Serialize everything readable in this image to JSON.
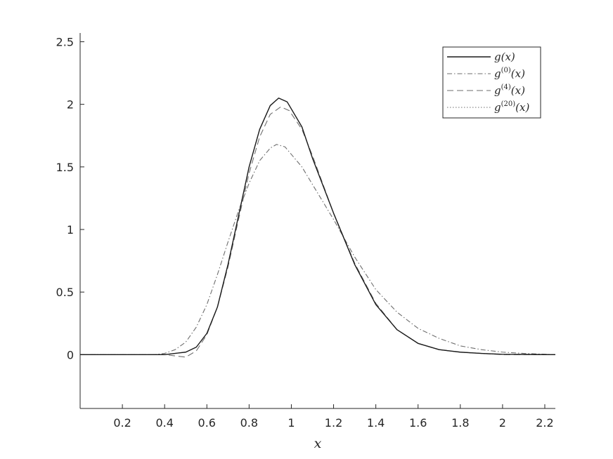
{
  "chart_data": {
    "type": "line",
    "title": "",
    "xlabel": "x",
    "ylabel": "",
    "xlim": [
      0.0,
      2.25
    ],
    "ylim": [
      -0.43,
      2.57
    ],
    "xticks": [
      "0.2",
      "0.4",
      "0.6",
      "0.8",
      "1",
      "1.2",
      "1.4",
      "1.6",
      "1.8",
      "2",
      "2.2"
    ],
    "yticks": [
      "0",
      "0.5",
      "1",
      "1.5",
      "2",
      "2.5"
    ],
    "grid": false,
    "legend_position": "top-right",
    "series": [
      {
        "name": "g(x)",
        "legend_base": "g",
        "legend_sup": "",
        "legend_tail": "(x)",
        "style": "solid",
        "color": "#1a1a1a",
        "points": [
          [
            0.0,
            0.0
          ],
          [
            0.4,
            0.0
          ],
          [
            0.5,
            0.02
          ],
          [
            0.55,
            0.06
          ],
          [
            0.6,
            0.17
          ],
          [
            0.65,
            0.38
          ],
          [
            0.7,
            0.72
          ],
          [
            0.75,
            1.11
          ],
          [
            0.8,
            1.5
          ],
          [
            0.85,
            1.8
          ],
          [
            0.9,
            1.99
          ],
          [
            0.94,
            2.05
          ],
          [
            0.98,
            2.02
          ],
          [
            1.05,
            1.82
          ],
          [
            1.1,
            1.57
          ],
          [
            1.2,
            1.13
          ],
          [
            1.3,
            0.72
          ],
          [
            1.4,
            0.4
          ],
          [
            1.5,
            0.2
          ],
          [
            1.6,
            0.09
          ],
          [
            1.7,
            0.04
          ],
          [
            1.8,
            0.02
          ],
          [
            1.9,
            0.01
          ],
          [
            2.0,
            0.003
          ],
          [
            2.25,
            0.0
          ]
        ]
      },
      {
        "name": "g^(0)(x)",
        "legend_base": "g",
        "legend_sup": "(0)",
        "legend_tail": "(x)",
        "style": "dashdot",
        "color": "#6e6e6e",
        "points": [
          [
            0.0,
            0.0
          ],
          [
            0.35,
            0.0
          ],
          [
            0.4,
            0.01
          ],
          [
            0.45,
            0.04
          ],
          [
            0.5,
            0.1
          ],
          [
            0.55,
            0.22
          ],
          [
            0.6,
            0.4
          ],
          [
            0.65,
            0.64
          ],
          [
            0.7,
            0.9
          ],
          [
            0.75,
            1.15
          ],
          [
            0.8,
            1.37
          ],
          [
            0.85,
            1.55
          ],
          [
            0.9,
            1.65
          ],
          [
            0.93,
            1.68
          ],
          [
            0.97,
            1.66
          ],
          [
            1.05,
            1.5
          ],
          [
            1.1,
            1.36
          ],
          [
            1.2,
            1.08
          ],
          [
            1.3,
            0.78
          ],
          [
            1.4,
            0.52
          ],
          [
            1.5,
            0.34
          ],
          [
            1.6,
            0.21
          ],
          [
            1.7,
            0.13
          ],
          [
            1.8,
            0.07
          ],
          [
            1.9,
            0.04
          ],
          [
            2.0,
            0.02
          ],
          [
            2.1,
            0.01
          ],
          [
            2.25,
            0.0
          ]
        ]
      },
      {
        "name": "g^(4)(x)",
        "legend_base": "g",
        "legend_sup": "(4)",
        "legend_tail": "(x)",
        "style": "dashed",
        "color": "#6e6e6e",
        "points": [
          [
            0.0,
            0.0
          ],
          [
            0.4,
            0.0
          ],
          [
            0.45,
            -0.01
          ],
          [
            0.5,
            -0.02
          ],
          [
            0.55,
            0.03
          ],
          [
            0.6,
            0.16
          ],
          [
            0.65,
            0.38
          ],
          [
            0.7,
            0.7
          ],
          [
            0.75,
            1.08
          ],
          [
            0.8,
            1.45
          ],
          [
            0.85,
            1.74
          ],
          [
            0.9,
            1.92
          ],
          [
            0.95,
            1.98
          ],
          [
            0.99,
            1.95
          ],
          [
            1.05,
            1.8
          ],
          [
            1.1,
            1.59
          ],
          [
            1.2,
            1.13
          ],
          [
            1.3,
            0.73
          ],
          [
            1.4,
            0.41
          ],
          [
            1.5,
            0.2
          ],
          [
            1.6,
            0.09
          ],
          [
            1.7,
            0.04
          ],
          [
            1.8,
            0.02
          ],
          [
            1.9,
            0.01
          ],
          [
            2.0,
            0.0
          ],
          [
            2.25,
            0.0
          ]
        ]
      },
      {
        "name": "g^(20)(x)",
        "legend_base": "g",
        "legend_sup": "(20)",
        "legend_tail": "(x)",
        "style": "dotted",
        "color": "#6e6e6e",
        "points": [
          [
            0.0,
            0.0
          ],
          [
            0.4,
            0.0
          ],
          [
            0.5,
            0.02
          ],
          [
            0.55,
            0.06
          ],
          [
            0.6,
            0.17
          ],
          [
            0.65,
            0.38
          ],
          [
            0.7,
            0.72
          ],
          [
            0.75,
            1.11
          ],
          [
            0.8,
            1.5
          ],
          [
            0.85,
            1.8
          ],
          [
            0.9,
            1.99
          ],
          [
            0.94,
            2.05
          ],
          [
            0.98,
            2.02
          ],
          [
            1.05,
            1.82
          ],
          [
            1.1,
            1.57
          ],
          [
            1.2,
            1.13
          ],
          [
            1.3,
            0.72
          ],
          [
            1.4,
            0.4
          ],
          [
            1.5,
            0.2
          ],
          [
            1.6,
            0.09
          ],
          [
            1.7,
            0.04
          ],
          [
            1.8,
            0.02
          ],
          [
            1.9,
            0.01
          ],
          [
            2.0,
            0.003
          ],
          [
            2.25,
            0.0
          ]
        ]
      }
    ]
  }
}
